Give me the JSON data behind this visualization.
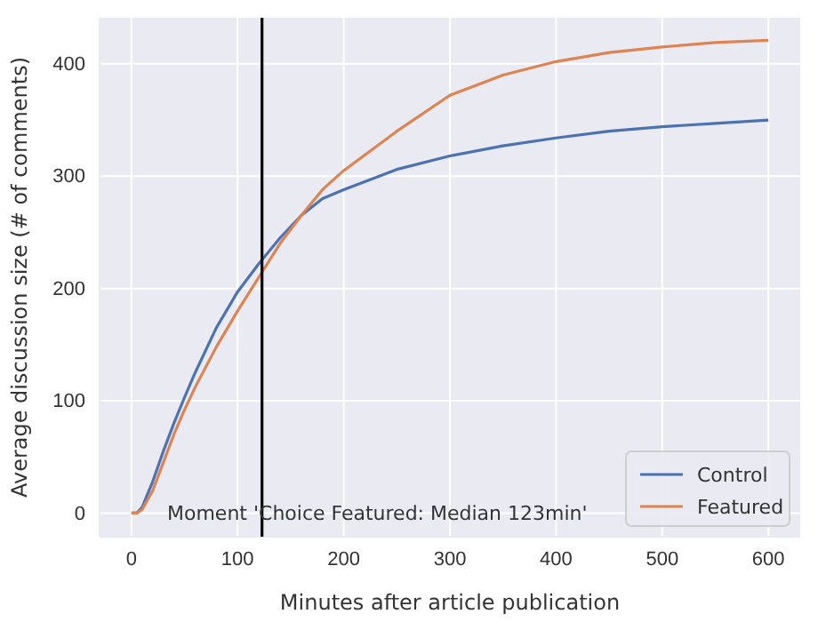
{
  "chart_data": {
    "type": "line",
    "xlabel": "Minutes after article publication",
    "ylabel": "Average discussion size (# of comments)",
    "x": [
      0,
      5,
      10,
      20,
      30,
      40,
      50,
      60,
      80,
      100,
      120,
      140,
      160,
      180,
      200,
      250,
      300,
      350,
      400,
      450,
      500,
      550,
      600
    ],
    "series": [
      {
        "name": "Control",
        "color": "#4c72b0",
        "values": [
          0,
          0,
          5,
          28,
          55,
          80,
          103,
          125,
          165,
          197,
          222,
          245,
          265,
          280,
          288,
          306,
          318,
          327,
          334,
          340,
          344,
          347,
          350
        ]
      },
      {
        "name": "Featured",
        "color": "#dd8452",
        "values": [
          0,
          0,
          3,
          20,
          45,
          70,
          92,
          112,
          148,
          180,
          210,
          240,
          265,
          288,
          305,
          340,
          372,
          390,
          402,
          410,
          415,
          419,
          421
        ]
      }
    ],
    "xlim": [
      -30,
      630
    ],
    "xticks": [
      0,
      100,
      200,
      300,
      400,
      500,
      600
    ],
    "ylim": [
      -21,
      441
    ],
    "yticks": [
      0,
      100,
      200,
      300,
      400
    ],
    "ref_lines": [
      {
        "axis": "x",
        "value": 123,
        "color": "#000000"
      }
    ],
    "annotations": [
      "Moment 'Choice Featured: Median 123min'"
    ],
    "grid": true,
    "legend": "bottom right",
    "marker": "none",
    "line_style": "solid"
  }
}
